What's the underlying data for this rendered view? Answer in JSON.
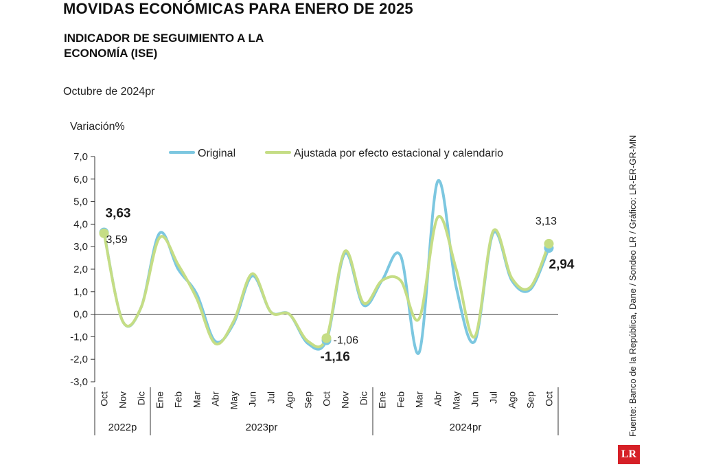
{
  "header": {
    "title": "MOVIDAS ECONÓMICAS PARA ENERO DE 2025",
    "subtitle": "INDICADOR DE SEGUIMIENTO A LA ECONOMÍA (ISE)",
    "date_note": "Octubre de 2024pr"
  },
  "chart_data": {
    "type": "line",
    "ylabel": "Variación%",
    "ylim": [
      -3.0,
      7.0
    ],
    "yticks": [
      "7,0",
      "6,0",
      "5,0",
      "4,0",
      "3,0",
      "2,0",
      "1,0",
      "0,0",
      "-1,0",
      "-2,0",
      "-3,0"
    ],
    "ytick_values": [
      7,
      6,
      5,
      4,
      3,
      2,
      1,
      0,
      -1,
      -2,
      -3
    ],
    "categories": [
      "Oct",
      "Nov",
      "Dic",
      "Ene",
      "Feb",
      "Mar",
      "Abr",
      "May",
      "Jun",
      "Jul",
      "Ago",
      "Sep",
      "Oct",
      "Nov",
      "Dic",
      "Ene",
      "Feb",
      "Mar",
      "Abr",
      "May",
      "Jun",
      "Jul",
      "Ago",
      "Sep",
      "Oct"
    ],
    "year_groups": [
      {
        "label": "2022p",
        "start": 0,
        "end": 2
      },
      {
        "label": "2023pr",
        "start": 3,
        "end": 14
      },
      {
        "label": "2024pr",
        "start": 15,
        "end": 24
      }
    ],
    "series": [
      {
        "name": "Original",
        "color": "#7cc7e0",
        "values": [
          3.63,
          -0.3,
          0.3,
          3.6,
          2.0,
          0.9,
          -1.2,
          -0.4,
          1.7,
          0.1,
          0.0,
          -1.3,
          -1.16,
          2.7,
          0.4,
          1.5,
          2.6,
          -1.7,
          5.9,
          1.2,
          -1.2,
          3.6,
          1.5,
          1.1,
          2.94
        ]
      },
      {
        "name": "Ajustada por efecto estacional y calendario",
        "color": "#c5dd85",
        "values": [
          3.59,
          -0.3,
          0.3,
          3.4,
          2.2,
          0.7,
          -1.3,
          -0.3,
          1.8,
          0.1,
          0.0,
          -1.2,
          -1.06,
          2.8,
          0.5,
          1.5,
          1.5,
          -0.2,
          4.3,
          2.0,
          -1.0,
          3.7,
          1.6,
          1.2,
          3.13
        ]
      }
    ],
    "annotations": [
      {
        "text": "3,63",
        "series": 0,
        "index": 0,
        "bold": true
      },
      {
        "text": "3,59",
        "series": 1,
        "index": 0,
        "bold": false
      },
      {
        "text": "-1,06",
        "series": 1,
        "index": 12,
        "bold": false
      },
      {
        "text": "-1,16",
        "series": 0,
        "index": 12,
        "bold": true
      },
      {
        "text": "3,13",
        "series": 1,
        "index": 24,
        "bold": false
      },
      {
        "text": "2,94",
        "series": 0,
        "index": 24,
        "bold": true
      }
    ]
  },
  "footer": {
    "source": "Fuente: Banco de la República, Dane / Sondeo LR / Gráfico: LR-ER-GR-MN",
    "logo": "LR"
  }
}
